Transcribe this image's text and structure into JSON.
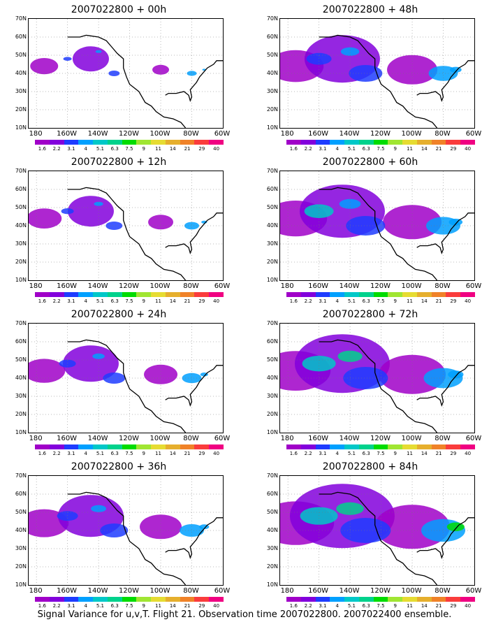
{
  "panels": [
    {
      "title": "2007022800 + 00h",
      "intensity": 0.2
    },
    {
      "title": "2007022800 + 12h",
      "intensity": 0.3
    },
    {
      "title": "2007022800 + 24h",
      "intensity": 0.4
    },
    {
      "title": "2007022800 + 36h",
      "intensity": 0.5
    },
    {
      "title": "2007022800 + 48h",
      "intensity": 0.6
    },
    {
      "title": "2007022800 + 60h",
      "intensity": 0.7
    },
    {
      "title": "2007022800 + 72h",
      "intensity": 0.8
    },
    {
      "title": "2007022800 + 84h",
      "intensity": 0.9
    }
  ],
  "lat_labels": [
    "70N",
    "60N",
    "50N",
    "40N",
    "30N",
    "20N",
    "10N"
  ],
  "lon_labels": [
    "180",
    "160W",
    "140W",
    "120W",
    "100W",
    "80W",
    "60W"
  ],
  "colorbar": {
    "colors": [
      "#a000c8",
      "#8200dc",
      "#1e3cff",
      "#00a0ff",
      "#00c8c8",
      "#00d28c",
      "#00dc00",
      "#a0e632",
      "#e6dc32",
      "#e6af2d",
      "#f08228",
      "#fa3c3c",
      "#f00082"
    ],
    "ticks": [
      "1.6",
      "2.2",
      "3.1",
      "4",
      "5.1",
      "6.3",
      "7.5",
      "9",
      "11",
      "14",
      "21",
      "29",
      "40"
    ]
  },
  "footnote": "Signal Variance for u,v,T. Flight 21. Observation time 2007022800. 2007022400 ensemble."
}
